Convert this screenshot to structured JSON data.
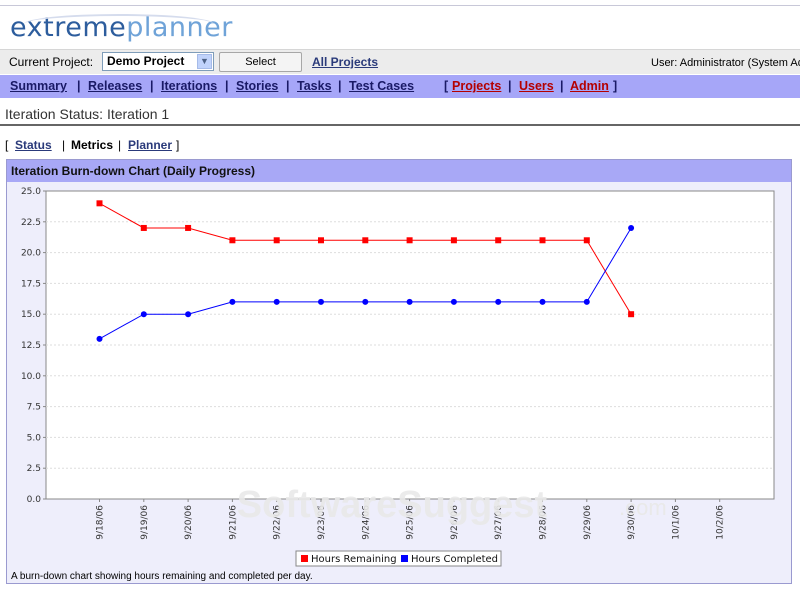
{
  "logo": {
    "part1": "extreme",
    "part2": "planner"
  },
  "project_bar": {
    "label": "Current Project:",
    "selected_project": "Demo Project",
    "select_button": "Select",
    "all_projects_link": "All Projects",
    "user_text": "User: Administrator (System Adr"
  },
  "nav": {
    "items": [
      "Summary",
      "Releases",
      "Iterations",
      "Stories",
      "Tasks",
      "Test Cases"
    ],
    "admin_items": [
      "Projects",
      "Users",
      "Admin"
    ]
  },
  "page_title": "Iteration Status: Iteration 1",
  "subnav": {
    "open_bracket": "[",
    "status": "Status",
    "sep": "|",
    "metrics": "Metrics",
    "planner": "Planner",
    "close_bracket": "]"
  },
  "panel": {
    "title": "Iteration Burn-down Chart (Daily Progress)",
    "caption": "A burn-down chart showing hours remaining and completed per day."
  },
  "colors": {
    "nav_bg": "#a6a6f8",
    "series_remaining": "#ff0000",
    "series_completed": "#0000ff"
  },
  "watermark": "SoftwareSuggest",
  "watermark_suffix": ".com",
  "chart_data": {
    "type": "line",
    "categories": [
      "9/18/06",
      "9/19/06",
      "9/20/06",
      "9/21/06",
      "9/22/06",
      "9/23/06",
      "9/24/06",
      "9/25/06",
      "9/26/06",
      "9/27/06",
      "9/28/06",
      "9/29/06",
      "9/30/06",
      "10/1/06",
      "10/2/06"
    ],
    "series": [
      {
        "name": "Hours Remaining",
        "color": "#ff0000",
        "marker": "square",
        "values": [
          24,
          22,
          22,
          21,
          21,
          21,
          21,
          21,
          21,
          21,
          21,
          21,
          15,
          null,
          null
        ]
      },
      {
        "name": "Hours Completed",
        "color": "#0000ff",
        "marker": "circle",
        "values": [
          13,
          15,
          15,
          16,
          16,
          16,
          16,
          16,
          16,
          16,
          16,
          16,
          22,
          null,
          null
        ]
      }
    ],
    "ylim": [
      0,
      25
    ],
    "yticks": [
      "0.0",
      "2.5",
      "5.0",
      "7.5",
      "10.0",
      "12.5",
      "15.0",
      "17.5",
      "20.0",
      "22.5",
      "25.0"
    ],
    "grid": true,
    "legend": "bottom-center"
  }
}
